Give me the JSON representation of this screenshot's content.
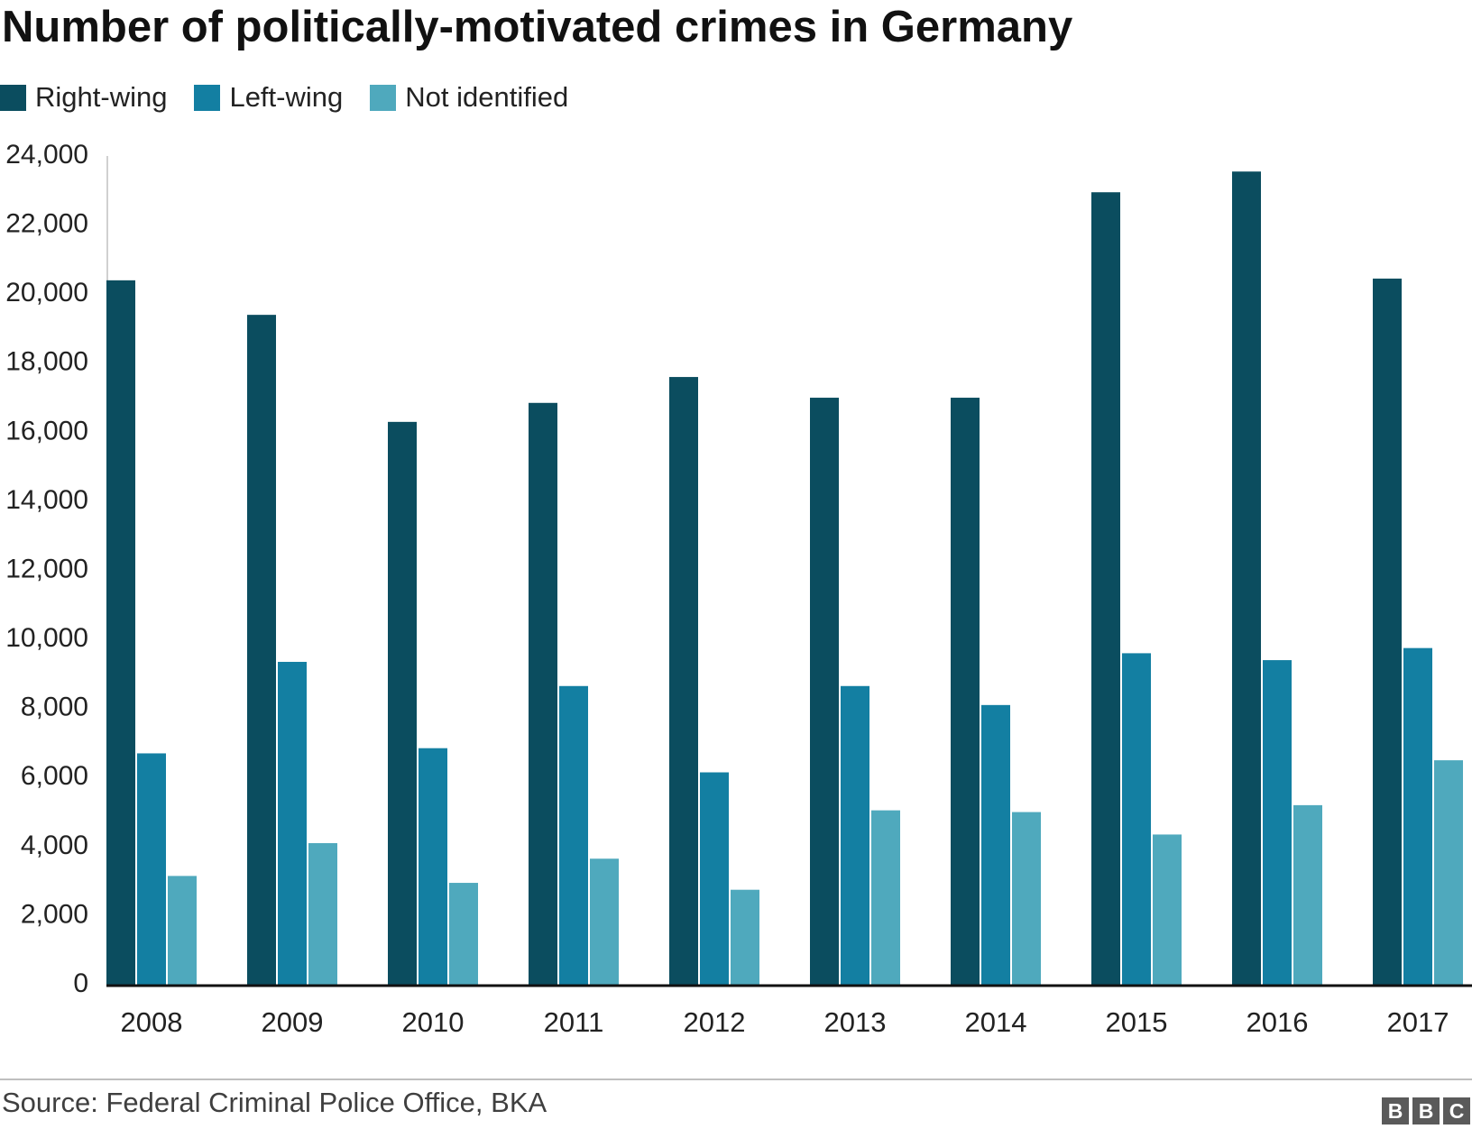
{
  "chart_data": {
    "type": "bar",
    "title": "Number of politically-motivated crimes in Germany",
    "categories": [
      "2008",
      "2009",
      "2010",
      "2011",
      "2012",
      "2013",
      "2014",
      "2015",
      "2016",
      "2017"
    ],
    "series": [
      {
        "name": "Right-wing",
        "color": "#0b4d5f",
        "values": [
          20400,
          19400,
          16300,
          16850,
          17600,
          17000,
          17000,
          22950,
          23550,
          20450
        ]
      },
      {
        "name": "Left-wing",
        "color": "#137fa2",
        "values": [
          6700,
          9350,
          6850,
          8650,
          6150,
          8650,
          8100,
          9600,
          9400,
          9750
        ]
      },
      {
        "name": "Not identified",
        "color": "#4fa9bd",
        "values": [
          3150,
          4100,
          2950,
          3650,
          2750,
          5050,
          5000,
          4350,
          5200,
          6500
        ]
      }
    ],
    "xlabel": "",
    "ylabel": "",
    "ylim": [
      0,
      24000
    ],
    "yticks": [
      0,
      2000,
      4000,
      6000,
      8000,
      10000,
      12000,
      14000,
      16000,
      18000,
      20000,
      22000,
      24000
    ],
    "ytick_labels": [
      "0",
      "2,000",
      "4,000",
      "6,000",
      "8,000",
      "10,000",
      "12,000",
      "14,000",
      "16,000",
      "18,000",
      "20,000",
      "22,000",
      "24,000"
    ],
    "legend_position": "top-left",
    "grid": false
  },
  "footer": {
    "source": "Source: Federal Criminal Police Office, BKA",
    "logo_letters": [
      "B",
      "B",
      "C"
    ]
  }
}
